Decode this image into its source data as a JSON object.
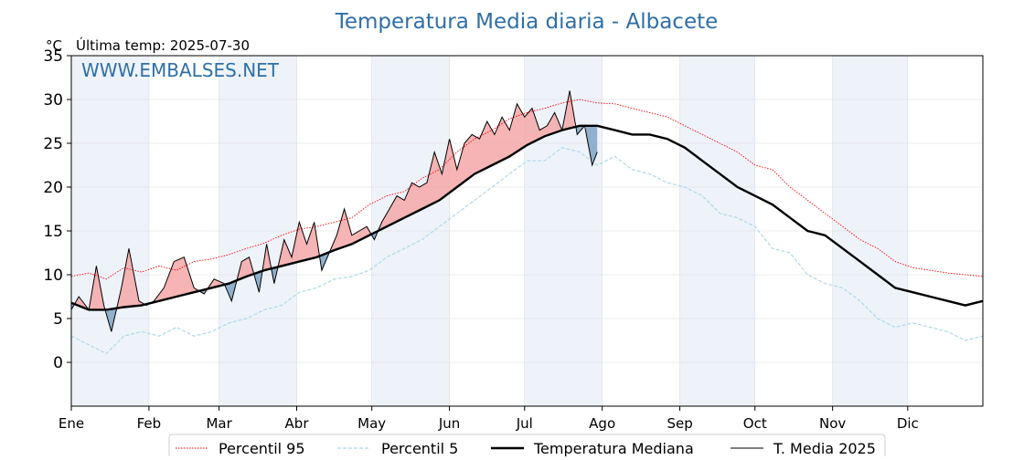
{
  "chart_data": {
    "type": "line",
    "title": "Temperatura Media diaria - Albacete",
    "unit_label": "°C",
    "subtitle": "Última temp: 2025-07-30",
    "watermark": "WWW.EMBALSES.NET",
    "ylim": [
      -5,
      35
    ],
    "yticks": [
      0,
      5,
      10,
      15,
      20,
      25,
      30,
      35
    ],
    "xlim_day": [
      1,
      365
    ],
    "months": [
      {
        "label": "Ene",
        "day": 1
      },
      {
        "label": "Feb",
        "day": 32
      },
      {
        "label": "Mar",
        "day": 60
      },
      {
        "label": "Abr",
        "day": 91
      },
      {
        "label": "May",
        "day": 121
      },
      {
        "label": "Jun",
        "day": 152
      },
      {
        "label": "Jul",
        "day": 182
      },
      {
        "label": "Ago",
        "day": 213
      },
      {
        "label": "Sep",
        "day": 244
      },
      {
        "label": "Oct",
        "day": 274
      },
      {
        "label": "Nov",
        "day": 305
      },
      {
        "label": "Dic",
        "day": 335
      }
    ],
    "grid": true,
    "legend_position": "bottom",
    "colors": {
      "title": "#2f6fa6",
      "p95": "#ff0000",
      "p5": "#add8e6",
      "median": "#000000",
      "current": "#000000",
      "above_fill": "#f4a7a7",
      "below_fill": "#7fa3c4",
      "band": "#eef3fa"
    },
    "series": [
      {
        "name": "Percentil 95",
        "style": "dotted",
        "x": [
          1,
          8,
          15,
          22,
          29,
          36,
          43,
          50,
          57,
          64,
          71,
          78,
          85,
          92,
          99,
          106,
          113,
          120,
          127,
          134,
          141,
          148,
          155,
          162,
          169,
          176,
          183,
          190,
          197,
          204,
          211,
          218,
          225,
          232,
          239,
          246,
          253,
          260,
          267,
          274,
          281,
          288,
          295,
          302,
          309,
          316,
          323,
          330,
          337,
          344,
          351,
          358,
          365
        ],
        "y": [
          9.8,
          10.2,
          9.5,
          10.8,
          10.3,
          11.0,
          10.5,
          11.5,
          11.8,
          12.3,
          13.0,
          13.6,
          14.5,
          15.2,
          15.5,
          16.0,
          16.5,
          18.0,
          19.0,
          19.5,
          21.0,
          22.0,
          24.0,
          25.5,
          26.5,
          27.8,
          28.5,
          29.0,
          29.6,
          30.0,
          29.6,
          29.5,
          29.0,
          28.5,
          28.0,
          27.0,
          26.0,
          25.0,
          24.0,
          22.5,
          22.0,
          20.0,
          18.5,
          17.0,
          15.5,
          14.0,
          13.0,
          11.5,
          10.8,
          10.5,
          10.2,
          10.0,
          9.8
        ]
      },
      {
        "name": "Percentil 5",
        "style": "dashed",
        "x": [
          1,
          8,
          15,
          22,
          29,
          36,
          43,
          50,
          57,
          64,
          71,
          78,
          85,
          92,
          99,
          106,
          113,
          120,
          127,
          134,
          141,
          148,
          155,
          162,
          169,
          176,
          183,
          190,
          197,
          204,
          211,
          218,
          225,
          232,
          239,
          246,
          253,
          260,
          267,
          274,
          281,
          288,
          295,
          302,
          309,
          316,
          323,
          330,
          337,
          344,
          351,
          358,
          365
        ],
        "y": [
          3.0,
          2.0,
          1.0,
          3.0,
          3.5,
          3.0,
          4.0,
          3.0,
          3.5,
          4.5,
          5.0,
          6.0,
          6.5,
          8.0,
          8.5,
          9.5,
          9.8,
          10.5,
          12.0,
          13.0,
          14.0,
          15.5,
          17.0,
          18.5,
          20.0,
          21.5,
          23.0,
          23.0,
          24.5,
          24.0,
          22.5,
          23.5,
          22.0,
          21.5,
          20.5,
          20.0,
          19.0,
          17.0,
          16.5,
          15.5,
          13.0,
          12.5,
          10.0,
          9.0,
          8.5,
          7.0,
          5.0,
          4.0,
          4.5,
          4.0,
          3.5,
          2.5,
          3.0
        ]
      },
      {
        "name": "Temperatura Mediana",
        "style": "solid-thick",
        "x": [
          1,
          8,
          15,
          22,
          29,
          36,
          43,
          50,
          57,
          64,
          71,
          78,
          85,
          92,
          99,
          106,
          113,
          120,
          127,
          134,
          141,
          148,
          155,
          162,
          169,
          176,
          183,
          190,
          197,
          204,
          211,
          218,
          225,
          232,
          239,
          246,
          253,
          260,
          267,
          274,
          281,
          288,
          295,
          302,
          309,
          316,
          323,
          330,
          337,
          344,
          351,
          358,
          365
        ],
        "y": [
          6.8,
          6.0,
          6.0,
          6.3,
          6.5,
          7.0,
          7.5,
          8.0,
          8.5,
          9.0,
          9.8,
          10.5,
          11.0,
          11.5,
          12.0,
          12.8,
          13.5,
          14.5,
          15.5,
          16.5,
          17.5,
          18.5,
          20.0,
          21.5,
          22.5,
          23.5,
          24.8,
          25.8,
          26.5,
          27.0,
          27.0,
          26.5,
          26.0,
          26.0,
          25.5,
          24.5,
          23.0,
          21.5,
          20.0,
          19.0,
          18.0,
          16.5,
          15.0,
          14.5,
          13.0,
          11.5,
          10.0,
          8.5,
          8.0,
          7.5,
          7.0,
          6.5,
          7.0
        ]
      },
      {
        "name": "T. Media 2025",
        "style": "solid-thin",
        "x": [
          1,
          4,
          8,
          11,
          14,
          17,
          21,
          24,
          28,
          31,
          34,
          38,
          42,
          46,
          50,
          54,
          58,
          62,
          65,
          69,
          72,
          76,
          79,
          82,
          86,
          89,
          92,
          95,
          98,
          101,
          104,
          107,
          110,
          113,
          116,
          119,
          122,
          125,
          128,
          131,
          134,
          137,
          140,
          143,
          146,
          149,
          152,
          155,
          158,
          161,
          164,
          167,
          170,
          173,
          176,
          179,
          182,
          185,
          188,
          191,
          194,
          197,
          200,
          203,
          206,
          209,
          211
        ],
        "y": [
          6.0,
          7.5,
          6.0,
          11.0,
          6.5,
          3.5,
          8.5,
          13.0,
          7.0,
          6.5,
          7.0,
          8.5,
          11.5,
          12.0,
          8.5,
          7.8,
          9.5,
          9.0,
          7.0,
          11.5,
          12.0,
          8.0,
          13.5,
          9.0,
          14.0,
          12.0,
          16.0,
          13.5,
          16.0,
          10.5,
          12.5,
          14.5,
          17.5,
          14.5,
          15.0,
          15.5,
          14.0,
          16.0,
          17.5,
          19.0,
          18.5,
          20.5,
          20.0,
          20.5,
          24.0,
          21.5,
          25.5,
          22.0,
          25.0,
          26.0,
          25.5,
          27.5,
          26.0,
          28.0,
          26.5,
          29.5,
          28.0,
          29.0,
          26.5,
          27.0,
          28.5,
          26.5,
          31.0,
          26.0,
          27.0,
          22.5,
          24.0
        ]
      }
    ]
  }
}
